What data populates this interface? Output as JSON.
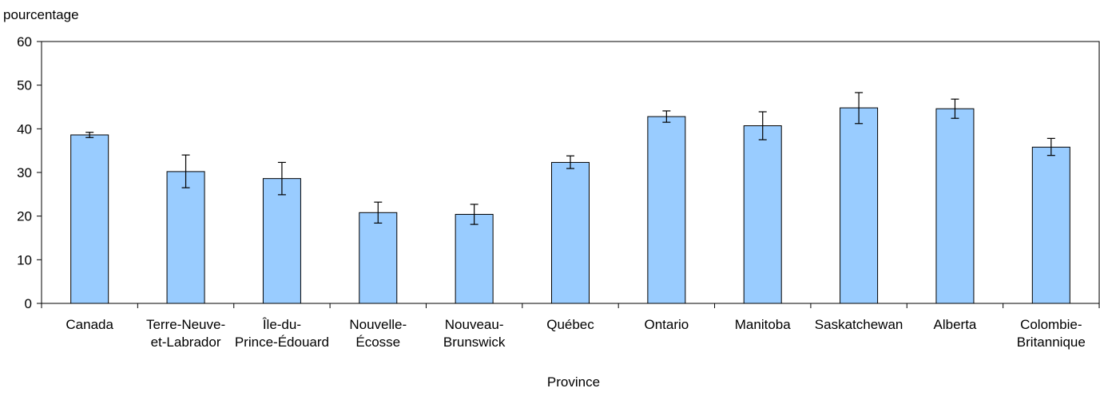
{
  "chart_data": {
    "type": "bar",
    "title": "",
    "ylabel": "pourcentage",
    "xlabel": "Province",
    "ylim": [
      0,
      60
    ],
    "yticks": [
      0,
      10,
      20,
      30,
      40,
      50,
      60
    ],
    "grid": false,
    "legend": "none",
    "categories": [
      [
        "Canada"
      ],
      [
        "Terre-Neuve-",
        "et-Labrador"
      ],
      [
        "Île-du-",
        "Prince-Édouard"
      ],
      [
        "Nouvelle-",
        "Écosse"
      ],
      [
        "Nouveau-",
        "Brunswick"
      ],
      [
        "Québec"
      ],
      [
        "Ontario"
      ],
      [
        "Manitoba"
      ],
      [
        "Saskatchewan"
      ],
      [
        "Alberta"
      ],
      [
        "Colombie-",
        "Britannique"
      ]
    ],
    "values": [
      38.6,
      30.2,
      28.6,
      20.8,
      20.4,
      32.3,
      42.8,
      40.7,
      44.8,
      44.6,
      35.8
    ],
    "error_low": [
      38.0,
      26.5,
      24.9,
      18.4,
      18.1,
      30.9,
      41.5,
      37.5,
      41.2,
      42.4,
      33.9
    ],
    "error_high": [
      39.2,
      34.0,
      32.3,
      23.2,
      22.7,
      33.8,
      44.1,
      43.9,
      48.3,
      46.8,
      37.8
    ],
    "bar_color": "#99ccff",
    "bar_edge_color": "#000000"
  }
}
